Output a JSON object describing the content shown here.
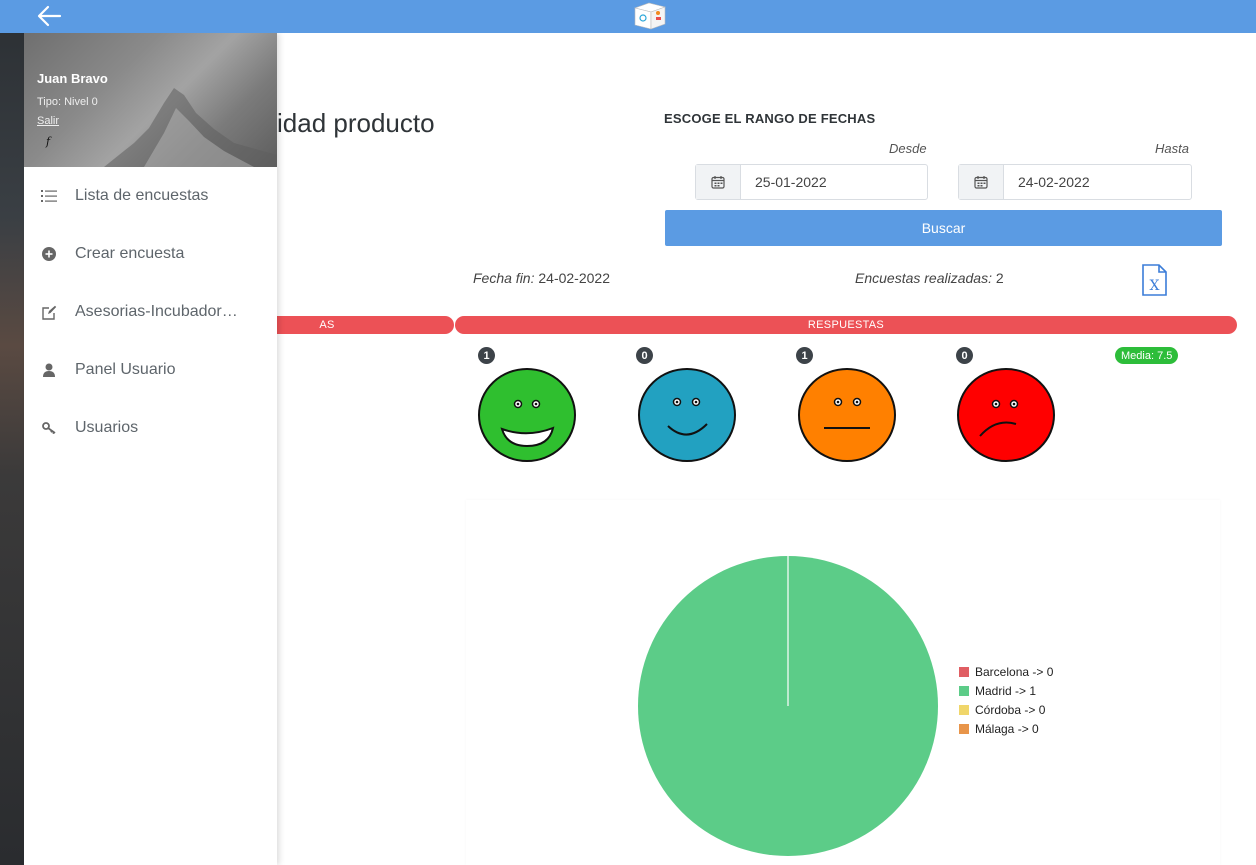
{
  "header": {
    "back_icon": "arrow-left-icon",
    "logo_icon": "app-logo-icon"
  },
  "profile": {
    "name": "Juan Bravo",
    "tipo": "Tipo: Nivel 0",
    "salir": "Salir",
    "social": "f"
  },
  "sidebar": {
    "items": [
      {
        "label": "Lista de encuestas",
        "icon": "list-icon"
      },
      {
        "label": "Crear encuesta",
        "icon": "plus-circle-icon"
      },
      {
        "label": "Asesorias-Incubador…",
        "icon": "edit-icon"
      },
      {
        "label": "Panel Usuario",
        "icon": "user-icon"
      },
      {
        "label": "Usuarios",
        "icon": "key-icon"
      }
    ]
  },
  "page": {
    "title_visible": "idad producto"
  },
  "date_range": {
    "title": "ESCOGE EL RANGO DE FECHAS",
    "desde_label": "Desde",
    "hasta_label": "Hasta",
    "desde_value": "25-01-2022",
    "hasta_value": "24-02-2022",
    "search_label": "Buscar"
  },
  "summary": {
    "fecha_fin_label": "Fecha fin:",
    "fecha_fin_value": "24-02-2022",
    "realizadas_label": "Encuestas realizadas:",
    "realizadas_value": "2",
    "export_icon": "excel-icon"
  },
  "bars": {
    "left_label": "AS",
    "respuestas_label": "RESPUESTAS"
  },
  "answers": [
    {
      "count": "1",
      "face": "very-happy",
      "color": "#2fbf2f"
    },
    {
      "count": "0",
      "face": "happy",
      "color": "#22a1c1"
    },
    {
      "count": "1",
      "face": "neutral",
      "color": "#ff8000"
    },
    {
      "count": "0",
      "face": "sad",
      "color": "#ff0000"
    }
  ],
  "media": "Media: 7.5",
  "chart_data": {
    "type": "pie",
    "title": "",
    "legend_position": "right",
    "slices": [
      {
        "label": "Barcelona -> 0",
        "value": 0,
        "color": "#e05e63"
      },
      {
        "label": "Madrid -> 1",
        "value": 1,
        "color": "#5ccc88"
      },
      {
        "label": "Córdoba -> 0",
        "value": 0,
        "color": "#f0d66a"
      },
      {
        "label": "Málaga -> 0",
        "value": 0,
        "color": "#e8954a"
      }
    ]
  }
}
